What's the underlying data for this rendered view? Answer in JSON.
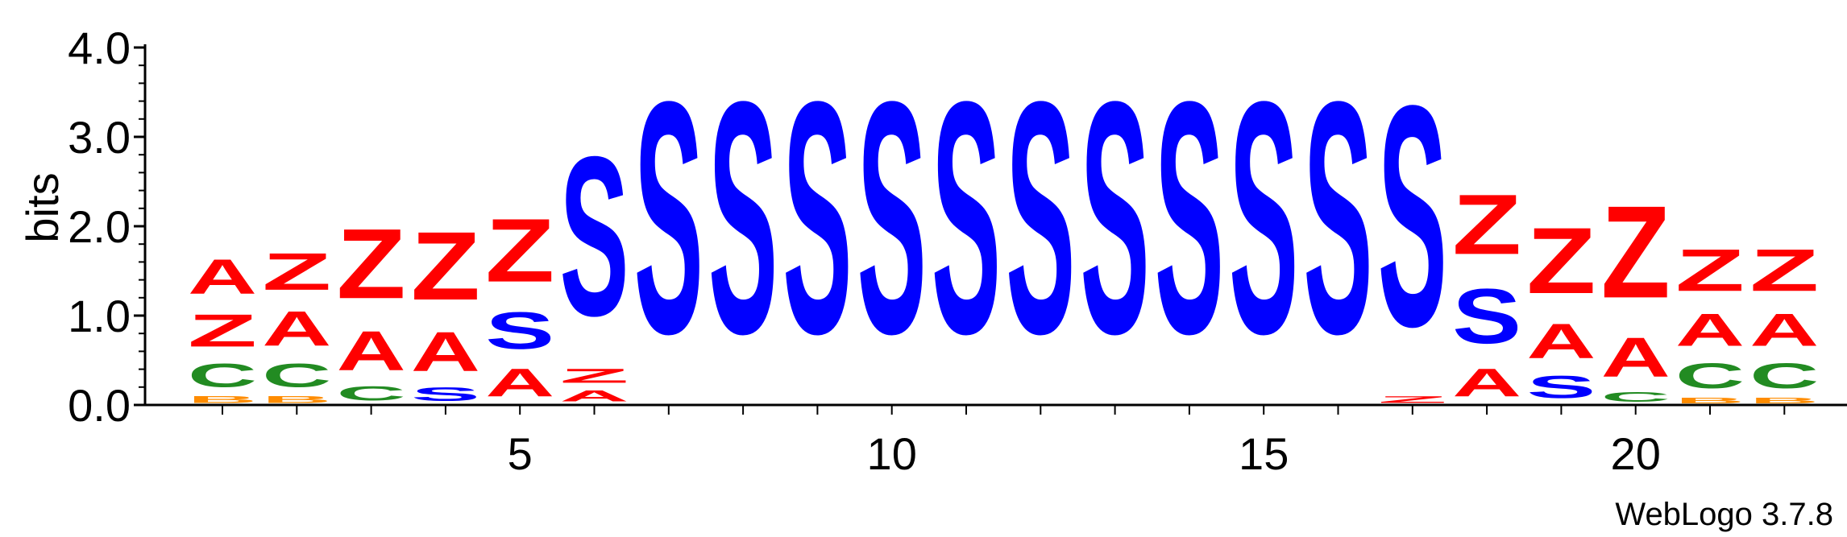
{
  "chart_data": {
    "type": "sequence-logo",
    "ylabel": "bits",
    "ylim": [
      0,
      4.0
    ],
    "y_ticks": [
      {
        "value": 0.0,
        "label": "0.0"
      },
      {
        "value": 1.0,
        "label": "1.0"
      },
      {
        "value": 2.0,
        "label": "2.0"
      },
      {
        "value": 3.0,
        "label": "3.0"
      },
      {
        "value": 4.0,
        "label": "4.0"
      }
    ],
    "x_ticks": [
      {
        "position": 5,
        "label": "5"
      },
      {
        "position": 10,
        "label": "10"
      },
      {
        "position": 15,
        "label": "15"
      },
      {
        "position": 20,
        "label": "20"
      }
    ],
    "positions_count": 22,
    "version_text": "WebLogo 3.7.8",
    "colors": {
      "S": "#0000ff",
      "Z": "#ff0000",
      "A": "#ff0000",
      "C": "#228b22",
      "B": "#ff8c00"
    },
    "positions": [
      {
        "pos": 1,
        "stack": [
          {
            "l": "B",
            "h": 0.12
          },
          {
            "l": "C",
            "h": 0.42
          },
          {
            "l": "Z",
            "h": 0.58
          },
          {
            "l": "A",
            "h": 0.62
          }
        ]
      },
      {
        "pos": 2,
        "stack": [
          {
            "l": "B",
            "h": 0.12
          },
          {
            "l": "C",
            "h": 0.42
          },
          {
            "l": "A",
            "h": 0.62
          },
          {
            "l": "Z",
            "h": 0.66
          }
        ]
      },
      {
        "pos": 3,
        "stack": [
          {
            "l": "C",
            "h": 0.25
          },
          {
            "l": "A",
            "h": 0.7
          },
          {
            "l": "Z",
            "h": 1.25
          }
        ]
      },
      {
        "pos": 4,
        "stack": [
          {
            "l": "S",
            "h": 0.24
          },
          {
            "l": "A",
            "h": 0.7
          },
          {
            "l": "Z",
            "h": 1.22
          }
        ]
      },
      {
        "pos": 5,
        "stack": [
          {
            "l": "A",
            "h": 0.5
          },
          {
            "l": "S",
            "h": 0.66
          },
          {
            "l": "Z",
            "h": 1.13
          }
        ]
      },
      {
        "pos": 6,
        "stack": [
          {
            "l": "A",
            "h": 0.2
          },
          {
            "l": "Z",
            "h": 0.25
          },
          {
            "l": "S",
            "h": 2.85
          }
        ]
      },
      {
        "pos": 7,
        "stack": [
          {
            "l": "S",
            "h": 4.15
          }
        ]
      },
      {
        "pos": 8,
        "stack": [
          {
            "l": "S",
            "h": 4.15
          }
        ]
      },
      {
        "pos": 9,
        "stack": [
          {
            "l": "S",
            "h": 4.15
          }
        ]
      },
      {
        "pos": 10,
        "stack": [
          {
            "l": "S",
            "h": 4.15
          }
        ]
      },
      {
        "pos": 11,
        "stack": [
          {
            "l": "S",
            "h": 4.15
          }
        ]
      },
      {
        "pos": 12,
        "stack": [
          {
            "l": "S",
            "h": 4.15
          }
        ]
      },
      {
        "pos": 13,
        "stack": [
          {
            "l": "S",
            "h": 4.15
          }
        ]
      },
      {
        "pos": 14,
        "stack": [
          {
            "l": "S",
            "h": 4.15
          }
        ]
      },
      {
        "pos": 15,
        "stack": [
          {
            "l": "S",
            "h": 4.15
          }
        ]
      },
      {
        "pos": 16,
        "stack": [
          {
            "l": "S",
            "h": 4.15
          }
        ]
      },
      {
        "pos": 17,
        "stack": [
          {
            "l": "Z",
            "h": 0.12
          },
          {
            "l": "S",
            "h": 3.95
          }
        ]
      },
      {
        "pos": 18,
        "stack": [
          {
            "l": "A",
            "h": 0.5
          },
          {
            "l": "S",
            "h": 0.98
          },
          {
            "l": "Z",
            "h": 1.07
          }
        ]
      },
      {
        "pos": 19,
        "stack": [
          {
            "l": "S",
            "h": 0.4
          },
          {
            "l": "A",
            "h": 0.62
          },
          {
            "l": "Z",
            "h": 1.18
          }
        ]
      },
      {
        "pos": 20,
        "stack": [
          {
            "l": "C",
            "h": 0.18
          },
          {
            "l": "A",
            "h": 0.7
          },
          {
            "l": "Z",
            "h": 1.65
          }
        ]
      },
      {
        "pos": 21,
        "stack": [
          {
            "l": "B",
            "h": 0.1
          },
          {
            "l": "C",
            "h": 0.45
          },
          {
            "l": "A",
            "h": 0.58
          },
          {
            "l": "Z",
            "h": 0.75
          }
        ]
      },
      {
        "pos": 22,
        "stack": [
          {
            "l": "B",
            "h": 0.1
          },
          {
            "l": "C",
            "h": 0.45
          },
          {
            "l": "A",
            "h": 0.58
          },
          {
            "l": "Z",
            "h": 0.75
          }
        ]
      }
    ]
  }
}
